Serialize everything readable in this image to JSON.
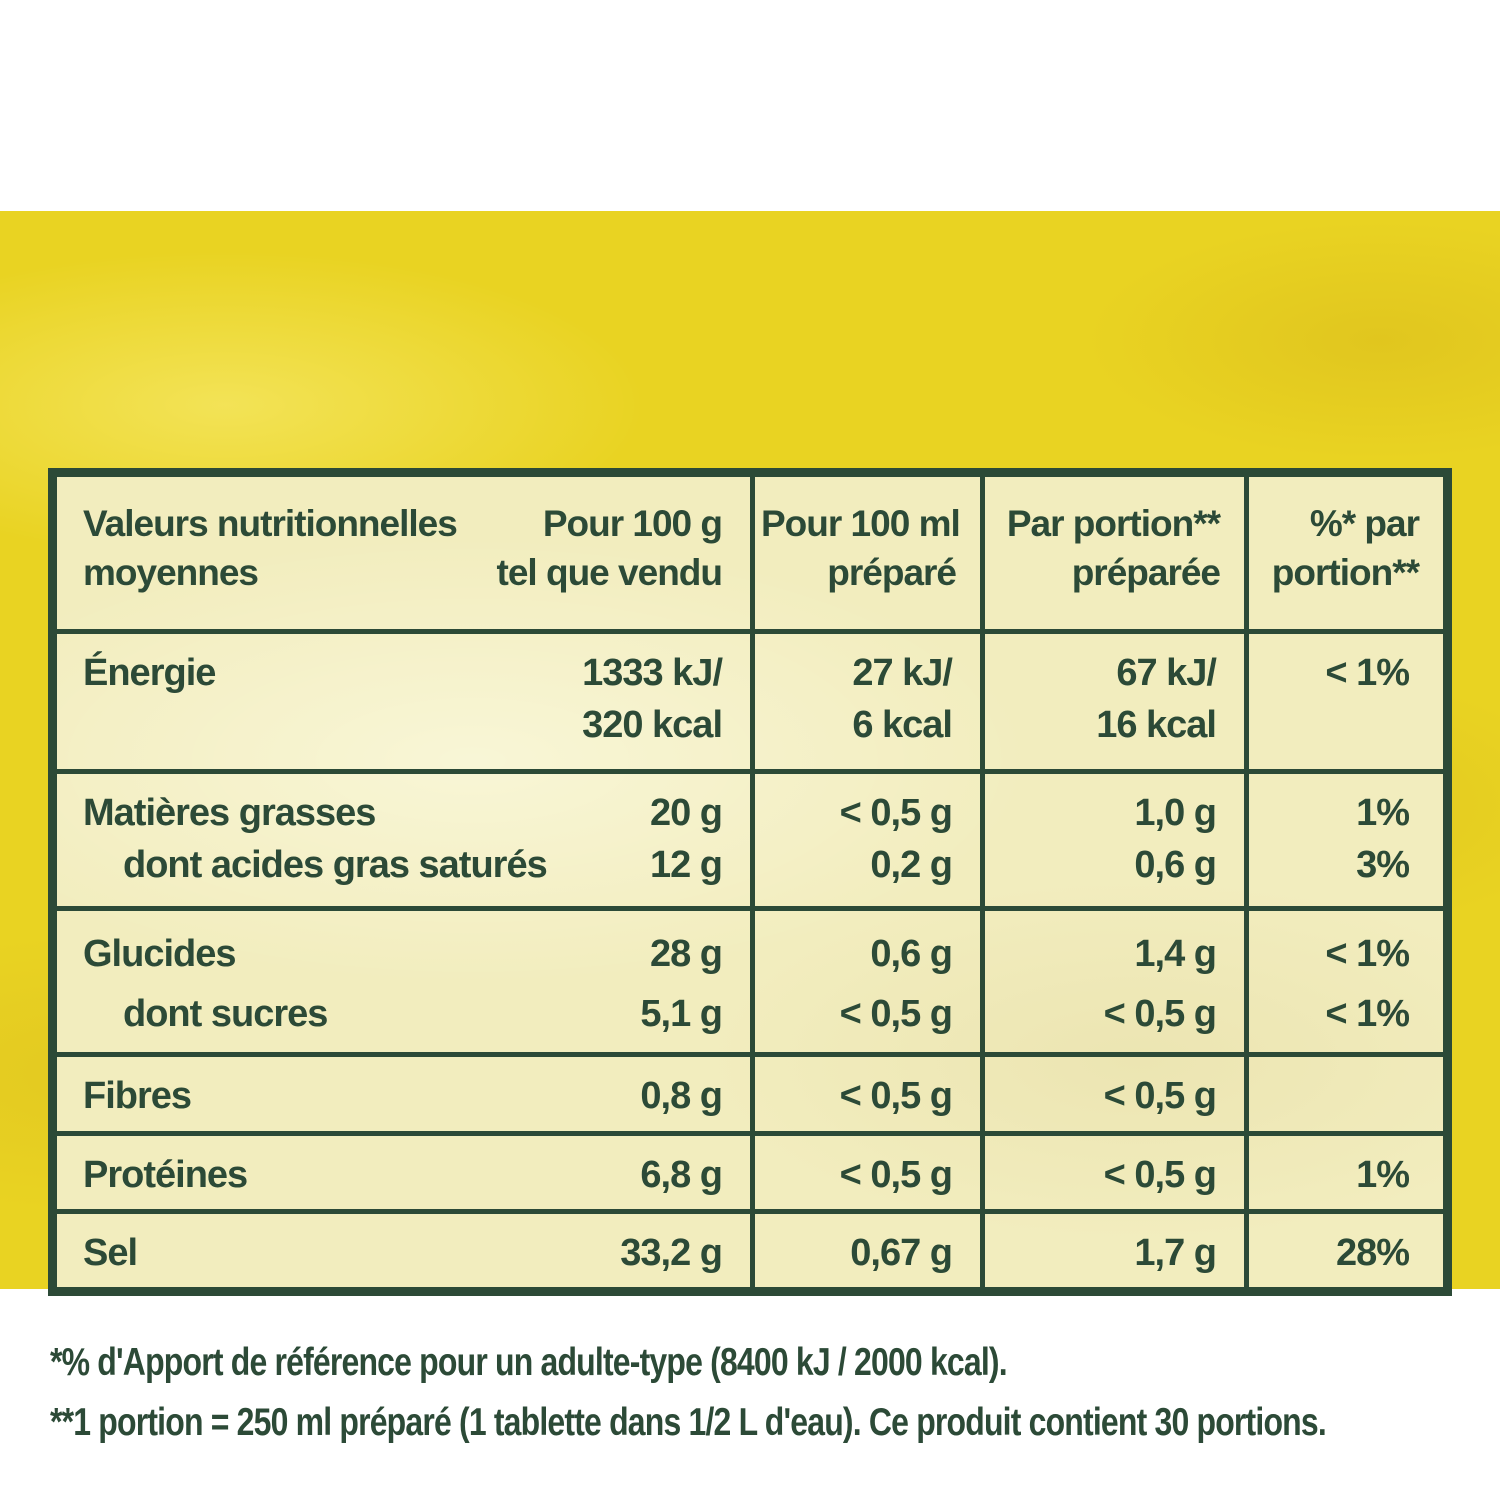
{
  "panel": {
    "outer_bg": "#e9d322",
    "inner_bg": "#f2edbe",
    "green": "#2c4a37"
  },
  "table": {
    "header": {
      "col_main": {
        "label_lines": [
          "Valeurs nutritionnelles",
          "moyennes"
        ],
        "value_lines": [
          "Pour 100 g",
          "tel que vendu"
        ]
      },
      "col_100ml": {
        "lines": [
          "Pour 100 ml",
          "préparé"
        ]
      },
      "col_portion": {
        "lines": [
          "Par portion**",
          "préparée"
        ]
      },
      "col_percent": {
        "lines": [
          "%* par",
          "portion**"
        ]
      }
    },
    "rows": [
      {
        "lines": [
          {
            "label": "Énergie",
            "indent": false,
            "v100g": "1333 kJ/",
            "v100ml": "27 kJ/",
            "vportion": "67 kJ/",
            "vpct": "< 1%"
          },
          {
            "label": "",
            "indent": false,
            "v100g": "320 kcal",
            "v100ml": "6 kcal",
            "vportion": "16 kcal",
            "vpct": ""
          }
        ]
      },
      {
        "lines": [
          {
            "label": "Matières grasses",
            "indent": false,
            "v100g": "20 g",
            "v100ml": "< 0,5 g",
            "vportion": "1,0 g",
            "vpct": "1%"
          },
          {
            "label": "dont acides gras saturés",
            "indent": true,
            "v100g": "12 g",
            "v100ml": "0,2 g",
            "vportion": "0,6 g",
            "vpct": "3%"
          }
        ]
      },
      {
        "lines": [
          {
            "label": "Glucides",
            "indent": false,
            "v100g": "28 g",
            "v100ml": "0,6 g",
            "vportion": "1,4 g",
            "vpct": "< 1%"
          },
          {
            "label": "dont sucres",
            "indent": true,
            "v100g": "5,1 g",
            "v100ml": "< 0,5 g",
            "vportion": "< 0,5 g",
            "vpct": "< 1%"
          }
        ]
      },
      {
        "lines": [
          {
            "label": "Fibres",
            "indent": false,
            "v100g": "0,8 g",
            "v100ml": "< 0,5 g",
            "vportion": "< 0,5 g",
            "vpct": ""
          }
        ]
      },
      {
        "lines": [
          {
            "label": "Protéines",
            "indent": false,
            "v100g": "6,8 g",
            "v100ml": "< 0,5 g",
            "vportion": "< 0,5 g",
            "vpct": "1%"
          }
        ]
      },
      {
        "lines": [
          {
            "label": "Sel",
            "indent": false,
            "v100g": "33,2 g",
            "v100ml": "0,67 g",
            "vportion": "1,7 g",
            "vpct": "28%"
          }
        ]
      }
    ]
  },
  "footnotes": [
    "*% d'Apport de référence pour un adulte-type (8400 kJ / 2000 kcal).",
    "**1 portion = 250 ml préparé (1 tablette dans 1/2 L d'eau). Ce produit contient 30 portions."
  ]
}
